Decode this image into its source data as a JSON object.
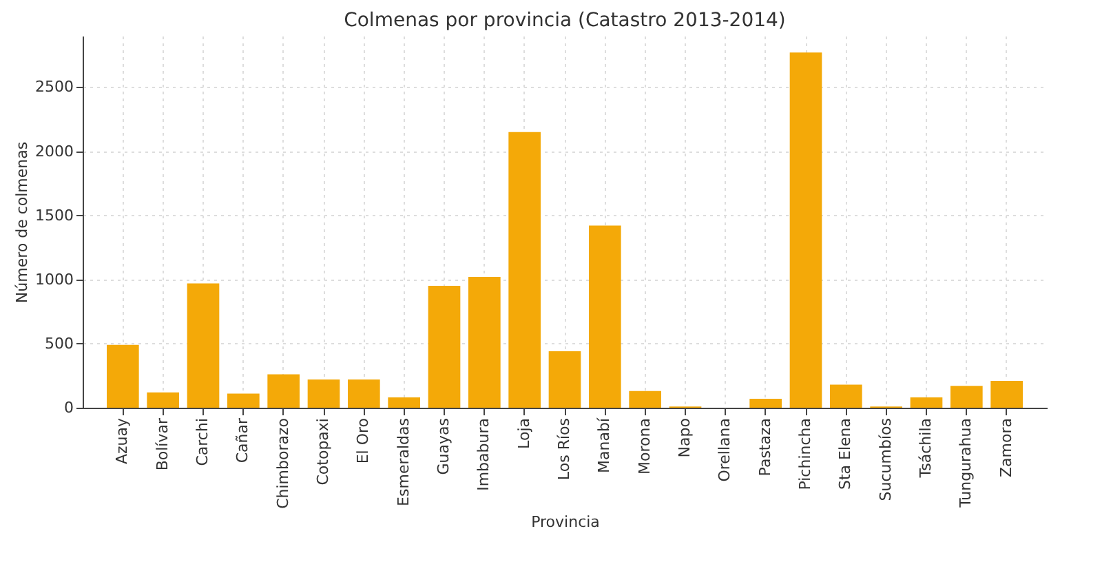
{
  "chart_data": {
    "type": "bar",
    "title": "Colmenas por provincia (Catastro 2013-2014)",
    "xlabel": "Provincia",
    "ylabel": "Número de colmenas",
    "categories": [
      "Azuay",
      "Bolívar",
      "Carchi",
      "Cañar",
      "Chimborazo",
      "Cotopaxi",
      "El Oro",
      "Esmeraldas",
      "Guayas",
      "Imbabura",
      "Loja",
      "Los Ríos",
      "Manabí",
      "Morona",
      "Napo",
      "Orellana",
      "Pastaza",
      "Pichincha",
      "Sta Elena",
      "Sucumbíos",
      "Tsáchila",
      "Tungurahua",
      "Zamora"
    ],
    "values": [
      490,
      120,
      970,
      110,
      260,
      220,
      220,
      80,
      950,
      1020,
      2150,
      440,
      1420,
      130,
      10,
      null,
      70,
      2770,
      180,
      10,
      80,
      170,
      210
    ],
    "color": "#f4a908",
    "ylim": [
      0,
      2900
    ],
    "yticks": [
      0,
      500,
      1000,
      1500,
      2000,
      2500
    ],
    "grid": true
  }
}
